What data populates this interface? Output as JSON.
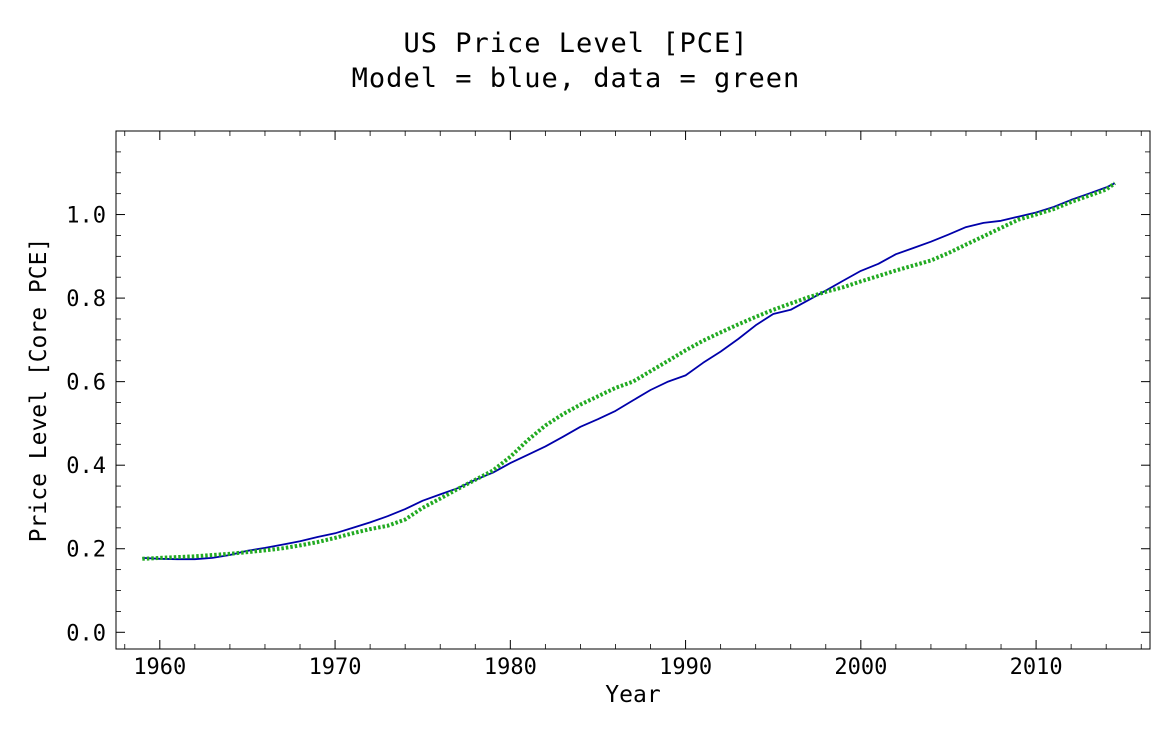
{
  "chart_data": {
    "type": "line",
    "title": "US Price Level [PCE]",
    "subtitle": "Model = blue, data = green",
    "xlabel": "Year",
    "ylabel": "Price Level [Core PCE]",
    "xlim": [
      1957.5,
      2016.5
    ],
    "ylim": [
      -0.04,
      1.2
    ],
    "xticks": [
      1960,
      1970,
      1980,
      1990,
      2000,
      2010
    ],
    "yticks": [
      0.0,
      0.2,
      0.4,
      0.6,
      0.8,
      1.0
    ],
    "ytick_labels": [
      "0.0",
      "0.2",
      "0.4",
      "0.6",
      "0.8",
      "1.0"
    ],
    "grid": false,
    "series": [
      {
        "name": "Model",
        "color": "#0000aa",
        "style": "solid",
        "x": [
          1959,
          1960,
          1961,
          1962,
          1963,
          1964,
          1965,
          1966,
          1967,
          1968,
          1969,
          1970,
          1971,
          1972,
          1973,
          1974,
          1975,
          1976,
          1977,
          1978,
          1979,
          1980,
          1981,
          1982,
          1983,
          1984,
          1985,
          1986,
          1987,
          1988,
          1989,
          1990,
          1991,
          1992,
          1993,
          1994,
          1995,
          1996,
          1997,
          1998,
          1999,
          2000,
          2001,
          2002,
          2003,
          2004,
          2005,
          2006,
          2007,
          2008,
          2009,
          2010,
          2011,
          2012,
          2013,
          2014,
          2014.5
        ],
        "y": [
          0.178,
          0.176,
          0.175,
          0.175,
          0.178,
          0.185,
          0.195,
          0.202,
          0.21,
          0.218,
          0.228,
          0.237,
          0.25,
          0.263,
          0.278,
          0.295,
          0.315,
          0.33,
          0.345,
          0.365,
          0.382,
          0.405,
          0.425,
          0.445,
          0.468,
          0.492,
          0.51,
          0.53,
          0.555,
          0.58,
          0.6,
          0.615,
          0.645,
          0.672,
          0.702,
          0.735,
          0.762,
          0.772,
          0.795,
          0.818,
          0.842,
          0.865,
          0.882,
          0.905,
          0.92,
          0.935,
          0.952,
          0.97,
          0.98,
          0.985,
          0.995,
          1.005,
          1.018,
          1.035,
          1.05,
          1.065,
          1.075
        ]
      },
      {
        "name": "data",
        "color": "#22aa22",
        "style": "dotted",
        "x": [
          1959,
          1960,
          1961,
          1962,
          1963,
          1964,
          1965,
          1966,
          1967,
          1968,
          1969,
          1970,
          1971,
          1972,
          1973,
          1974,
          1975,
          1976,
          1977,
          1978,
          1979,
          1980,
          1981,
          1982,
          1983,
          1984,
          1985,
          1986,
          1987,
          1988,
          1989,
          1990,
          1991,
          1992,
          1993,
          1994,
          1995,
          1996,
          1997,
          1998,
          1999,
          2000,
          2001,
          2002,
          2003,
          2004,
          2005,
          2006,
          2007,
          2008,
          2009,
          2010,
          2011,
          2012,
          2013,
          2014,
          2014.5
        ],
        "y": [
          0.176,
          0.178,
          0.18,
          0.182,
          0.185,
          0.188,
          0.192,
          0.196,
          0.201,
          0.208,
          0.216,
          0.226,
          0.237,
          0.247,
          0.255,
          0.27,
          0.298,
          0.32,
          0.343,
          0.365,
          0.387,
          0.42,
          0.46,
          0.495,
          0.522,
          0.545,
          0.565,
          0.585,
          0.6,
          0.625,
          0.65,
          0.675,
          0.698,
          0.718,
          0.737,
          0.755,
          0.772,
          0.787,
          0.802,
          0.815,
          0.826,
          0.84,
          0.853,
          0.866,
          0.878,
          0.89,
          0.908,
          0.928,
          0.948,
          0.968,
          0.988,
          1.0,
          1.013,
          1.03,
          1.045,
          1.06,
          1.075
        ]
      }
    ]
  }
}
